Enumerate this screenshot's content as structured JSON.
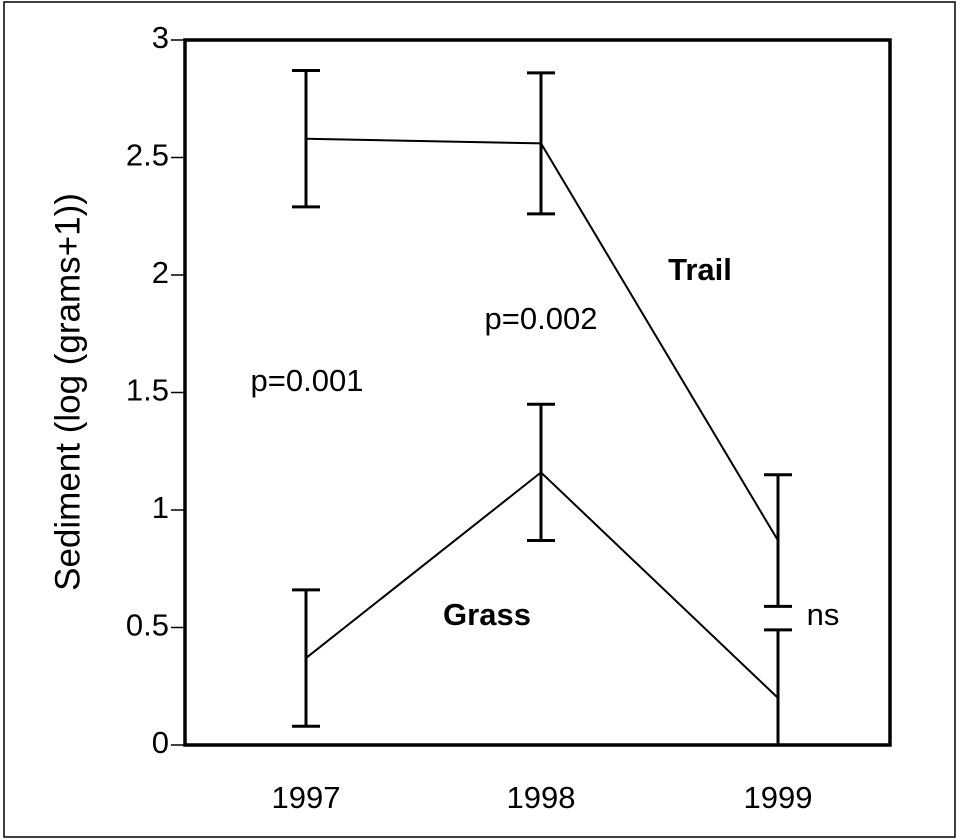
{
  "chart_data": {
    "type": "line",
    "ylabel": "Sediment (log (grams+1))",
    "categories": [
      "1997",
      "1998",
      "1999"
    ],
    "series": [
      {
        "name": "Trail",
        "color": "#000000",
        "values": [
          2.58,
          2.56,
          0.87
        ],
        "errors": [
          0.29,
          0.3,
          0.28
        ]
      },
      {
        "name": "Grass",
        "color": "#000000",
        "values": [
          0.37,
          1.16,
          0.2
        ],
        "errors": [
          0.29,
          0.29,
          0.29
        ]
      }
    ],
    "annotations": [
      "p=0.001",
      "p=0.002",
      "ns"
    ],
    "ylim": [
      0,
      3
    ],
    "yticks": [
      0,
      0.5,
      1,
      1.5,
      2,
      2.5,
      3
    ],
    "grid": false
  }
}
